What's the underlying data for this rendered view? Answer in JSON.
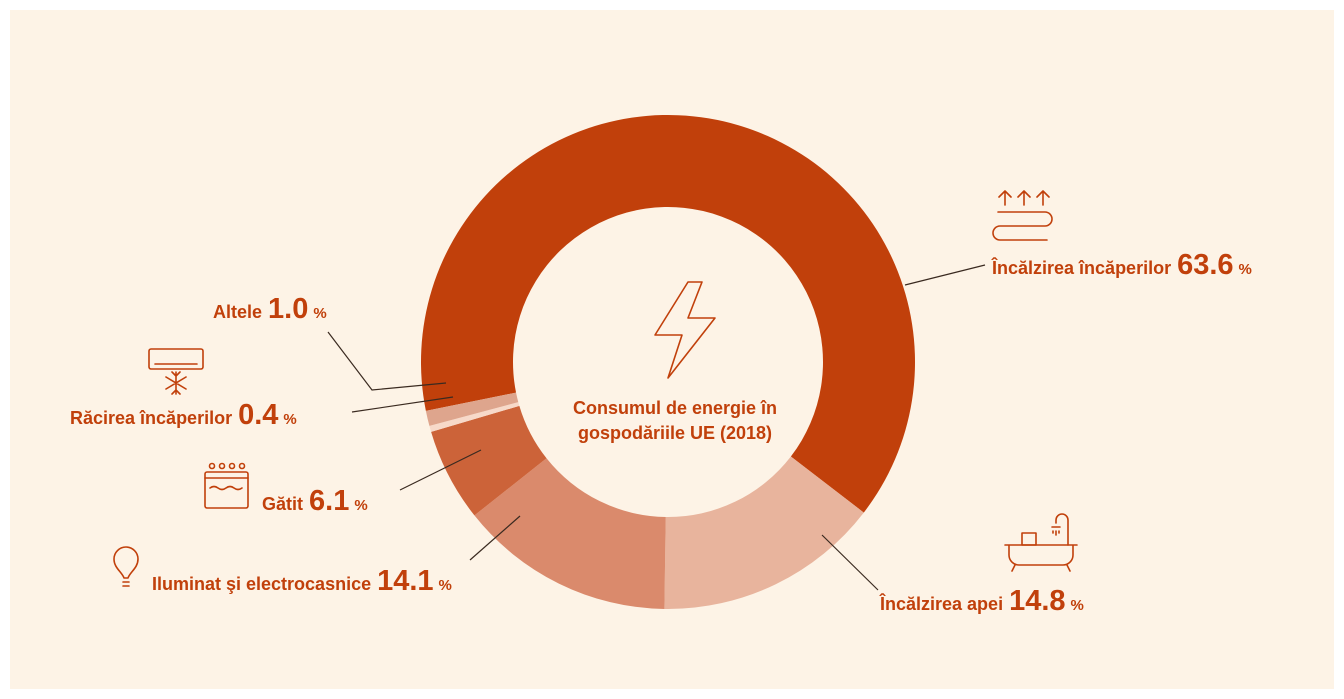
{
  "chart_data": {
    "type": "pie",
    "title": "Consumul de energie în gospodăriile UE (2018)",
    "categories": [
      "Încălzirea încăperilor",
      "Încălzirea apei",
      "Iluminat şi electrocasnice",
      "Gătit",
      "Răcirea încăperilor",
      "Altele"
    ],
    "values": [
      63.6,
      14.8,
      14.1,
      6.1,
      0.4,
      1.0
    ],
    "value_labels": [
      "63.6",
      "14.8",
      "14.1",
      "6.1",
      "0.4",
      "1.0"
    ],
    "unit": "%",
    "colors": [
      "#c1400b",
      "#e8b49d",
      "#da8a6c",
      "#cc6339",
      "#f7d9c9",
      "#dea58d"
    ]
  }
}
